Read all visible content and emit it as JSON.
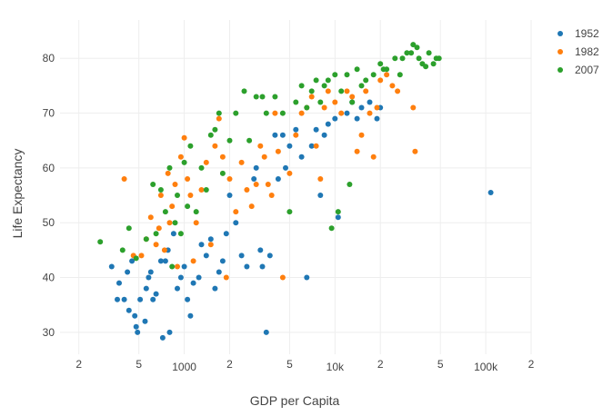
{
  "chart_data": {
    "type": "scatter",
    "title": "",
    "xlabel": "GDP per Capita",
    "ylabel": "Life Expectancy",
    "x_scale": "log",
    "xlim": [
      150,
      200000
    ],
    "ylim": [
      26,
      87
    ],
    "grid": true,
    "legend_position": "top-right",
    "x_major_ticks": [
      {
        "value": 1000,
        "label": "1000"
      },
      {
        "value": 10000,
        "label": "10k"
      },
      {
        "value": 100000,
        "label": "100k"
      }
    ],
    "x_minor_ticks": [
      {
        "value": 200,
        "label": "2"
      },
      {
        "value": 500,
        "label": "5"
      },
      {
        "value": 2000,
        "label": "2"
      },
      {
        "value": 5000,
        "label": "5"
      },
      {
        "value": 20000,
        "label": "2"
      },
      {
        "value": 50000,
        "label": "5"
      },
      {
        "value": 200000,
        "label": "2"
      }
    ],
    "y_ticks": [
      30,
      40,
      50,
      60,
      70,
      80
    ],
    "series": [
      {
        "name": "1952",
        "color": "#1f77b4",
        "points": [
          [
            330,
            42
          ],
          [
            370,
            39
          ],
          [
            360,
            36
          ],
          [
            400,
            36
          ],
          [
            420,
            41
          ],
          [
            450,
            43
          ],
          [
            430,
            34
          ],
          [
            470,
            33
          ],
          [
            480,
            31
          ],
          [
            490,
            30
          ],
          [
            510,
            36
          ],
          [
            550,
            32
          ],
          [
            560,
            38
          ],
          [
            580,
            40
          ],
          [
            600,
            41
          ],
          [
            620,
            36
          ],
          [
            650,
            37
          ],
          [
            700,
            43
          ],
          [
            720,
            29
          ],
          [
            750,
            43
          ],
          [
            780,
            45
          ],
          [
            800,
            30
          ],
          [
            850,
            48
          ],
          [
            900,
            38
          ],
          [
            950,
            40
          ],
          [
            1000,
            42
          ],
          [
            1050,
            36
          ],
          [
            1100,
            33
          ],
          [
            1150,
            39
          ],
          [
            1250,
            40
          ],
          [
            1300,
            46
          ],
          [
            1400,
            44
          ],
          [
            1500,
            47
          ],
          [
            1600,
            38
          ],
          [
            1700,
            41
          ],
          [
            1800,
            43
          ],
          [
            1900,
            48
          ],
          [
            2000,
            55
          ],
          [
            2200,
            50
          ],
          [
            2400,
            44
          ],
          [
            2600,
            42
          ],
          [
            2900,
            58
          ],
          [
            3000,
            60
          ],
          [
            3200,
            45
          ],
          [
            3300,
            42
          ],
          [
            3500,
            30
          ],
          [
            3700,
            44
          ],
          [
            4000,
            66
          ],
          [
            4200,
            58
          ],
          [
            4500,
            66
          ],
          [
            4700,
            60
          ],
          [
            5000,
            64
          ],
          [
            5500,
            67
          ],
          [
            6000,
            62
          ],
          [
            6500,
            40
          ],
          [
            7000,
            64
          ],
          [
            7500,
            67
          ],
          [
            8000,
            55
          ],
          [
            8500,
            66
          ],
          [
            9000,
            68
          ],
          [
            10000,
            69
          ],
          [
            10500,
            51
          ],
          [
            12000,
            70
          ],
          [
            13000,
            72
          ],
          [
            14000,
            69
          ],
          [
            15000,
            71
          ],
          [
            17000,
            72
          ],
          [
            19000,
            69
          ],
          [
            20000,
            71
          ],
          [
            108000,
            55.5
          ]
        ]
      },
      {
        "name": "1982",
        "color": "#ff7f0e",
        "points": [
          [
            400,
            58
          ],
          [
            460,
            44
          ],
          [
            520,
            44
          ],
          [
            560,
            47
          ],
          [
            600,
            51
          ],
          [
            650,
            46
          ],
          [
            680,
            49
          ],
          [
            700,
            55
          ],
          [
            740,
            45
          ],
          [
            780,
            59
          ],
          [
            800,
            50
          ],
          [
            830,
            53
          ],
          [
            870,
            57
          ],
          [
            900,
            42
          ],
          [
            950,
            62
          ],
          [
            1000,
            65.5
          ],
          [
            1050,
            58
          ],
          [
            1100,
            55
          ],
          [
            1150,
            43
          ],
          [
            1200,
            50
          ],
          [
            1300,
            56
          ],
          [
            1400,
            61
          ],
          [
            1500,
            46
          ],
          [
            1600,
            64
          ],
          [
            1700,
            69
          ],
          [
            1800,
            62
          ],
          [
            1900,
            40
          ],
          [
            2000,
            58
          ],
          [
            2200,
            52
          ],
          [
            2400,
            61
          ],
          [
            2600,
            56
          ],
          [
            2800,
            53
          ],
          [
            3000,
            57
          ],
          [
            3200,
            64
          ],
          [
            3400,
            62
          ],
          [
            3600,
            57
          ],
          [
            3800,
            55
          ],
          [
            4000,
            70
          ],
          [
            4200,
            63
          ],
          [
            4500,
            40
          ],
          [
            5000,
            59
          ],
          [
            5500,
            66
          ],
          [
            6000,
            70
          ],
          [
            6500,
            71
          ],
          [
            7000,
            73
          ],
          [
            7500,
            64
          ],
          [
            8000,
            58
          ],
          [
            8500,
            71
          ],
          [
            9000,
            74
          ],
          [
            10000,
            72
          ],
          [
            11000,
            70
          ],
          [
            12000,
            74
          ],
          [
            13000,
            73
          ],
          [
            14000,
            63
          ],
          [
            15000,
            66
          ],
          [
            16000,
            74
          ],
          [
            17000,
            70
          ],
          [
            19000,
            71
          ],
          [
            20000,
            76
          ],
          [
            22000,
            77
          ],
          [
            24000,
            75
          ],
          [
            26000,
            74
          ],
          [
            33000,
            71
          ],
          [
            34000,
            63
          ],
          [
            18000,
            62
          ]
        ]
      },
      {
        "name": "2007",
        "color": "#2ca02c",
        "points": [
          [
            277,
            46.5
          ],
          [
            390,
            45
          ],
          [
            430,
            49
          ],
          [
            480,
            43.5
          ],
          [
            560,
            47
          ],
          [
            620,
            57
          ],
          [
            650,
            48
          ],
          [
            700,
            56
          ],
          [
            750,
            52
          ],
          [
            800,
            60
          ],
          [
            830,
            42
          ],
          [
            870,
            50
          ],
          [
            900,
            55
          ],
          [
            950,
            48
          ],
          [
            1000,
            61
          ],
          [
            1050,
            53
          ],
          [
            1100,
            64
          ],
          [
            1200,
            52
          ],
          [
            1300,
            60
          ],
          [
            1400,
            56
          ],
          [
            1500,
            66
          ],
          [
            1600,
            67
          ],
          [
            1700,
            70
          ],
          [
            1800,
            59
          ],
          [
            2000,
            65
          ],
          [
            2200,
            70
          ],
          [
            2500,
            74
          ],
          [
            2700,
            65
          ],
          [
            3000,
            73
          ],
          [
            3300,
            73
          ],
          [
            3500,
            70
          ],
          [
            4000,
            73
          ],
          [
            4500,
            70
          ],
          [
            5000,
            52
          ],
          [
            5500,
            72
          ],
          [
            6000,
            75
          ],
          [
            6500,
            71
          ],
          [
            7000,
            74
          ],
          [
            7500,
            76
          ],
          [
            8000,
            72
          ],
          [
            8500,
            75
          ],
          [
            9000,
            76
          ],
          [
            9500,
            49
          ],
          [
            10000,
            77
          ],
          [
            10500,
            52
          ],
          [
            11000,
            74
          ],
          [
            12000,
            77
          ],
          [
            12500,
            57
          ],
          [
            13000,
            72
          ],
          [
            14000,
            78
          ],
          [
            15000,
            75
          ],
          [
            16000,
            76
          ],
          [
            18000,
            77
          ],
          [
            20000,
            79
          ],
          [
            22000,
            78
          ],
          [
            25000,
            80
          ],
          [
            28000,
            80
          ],
          [
            30000,
            81
          ],
          [
            32000,
            81
          ],
          [
            35000,
            82
          ],
          [
            36000,
            80
          ],
          [
            38000,
            79
          ],
          [
            40000,
            78.5
          ],
          [
            45000,
            79
          ],
          [
            47000,
            80
          ],
          [
            49000,
            80
          ],
          [
            21000,
            78
          ],
          [
            27000,
            77
          ],
          [
            33000,
            82.5
          ],
          [
            42000,
            81
          ]
        ]
      }
    ]
  }
}
